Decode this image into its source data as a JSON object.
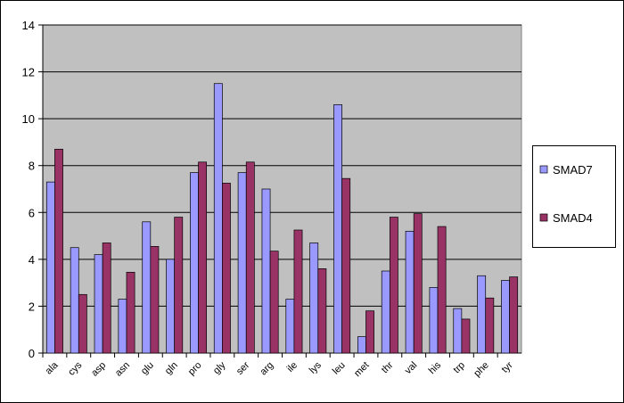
{
  "chart_data": {
    "type": "bar",
    "categories": [
      "ala",
      "cys",
      "asp",
      "asn",
      "glu",
      "gln",
      "pro",
      "gly",
      "ser",
      "arg",
      "ile",
      "lys",
      "leu",
      "met",
      "thr",
      "val",
      "his",
      "trp",
      "phe",
      "tyr"
    ],
    "series": [
      {
        "name": "SMAD7",
        "color": "#9999ff",
        "values": [
          7.3,
          4.5,
          4.2,
          2.3,
          5.6,
          4.0,
          7.7,
          11.5,
          7.7,
          7.0,
          2.3,
          4.7,
          10.6,
          0.7,
          3.5,
          5.2,
          2.8,
          1.9,
          3.3,
          3.1
        ]
      },
      {
        "name": "SMAD4",
        "color": "#993366",
        "values": [
          8.7,
          2.5,
          4.7,
          3.45,
          4.55,
          5.8,
          8.15,
          7.25,
          8.15,
          4.35,
          5.25,
          3.6,
          7.45,
          1.8,
          5.8,
          5.95,
          5.4,
          1.45,
          2.35,
          3.25
        ]
      }
    ],
    "ylim": [
      0,
      14
    ],
    "yticks": [
      0,
      2,
      4,
      6,
      8,
      10,
      12,
      14
    ],
    "grid": true,
    "legend": "right"
  }
}
